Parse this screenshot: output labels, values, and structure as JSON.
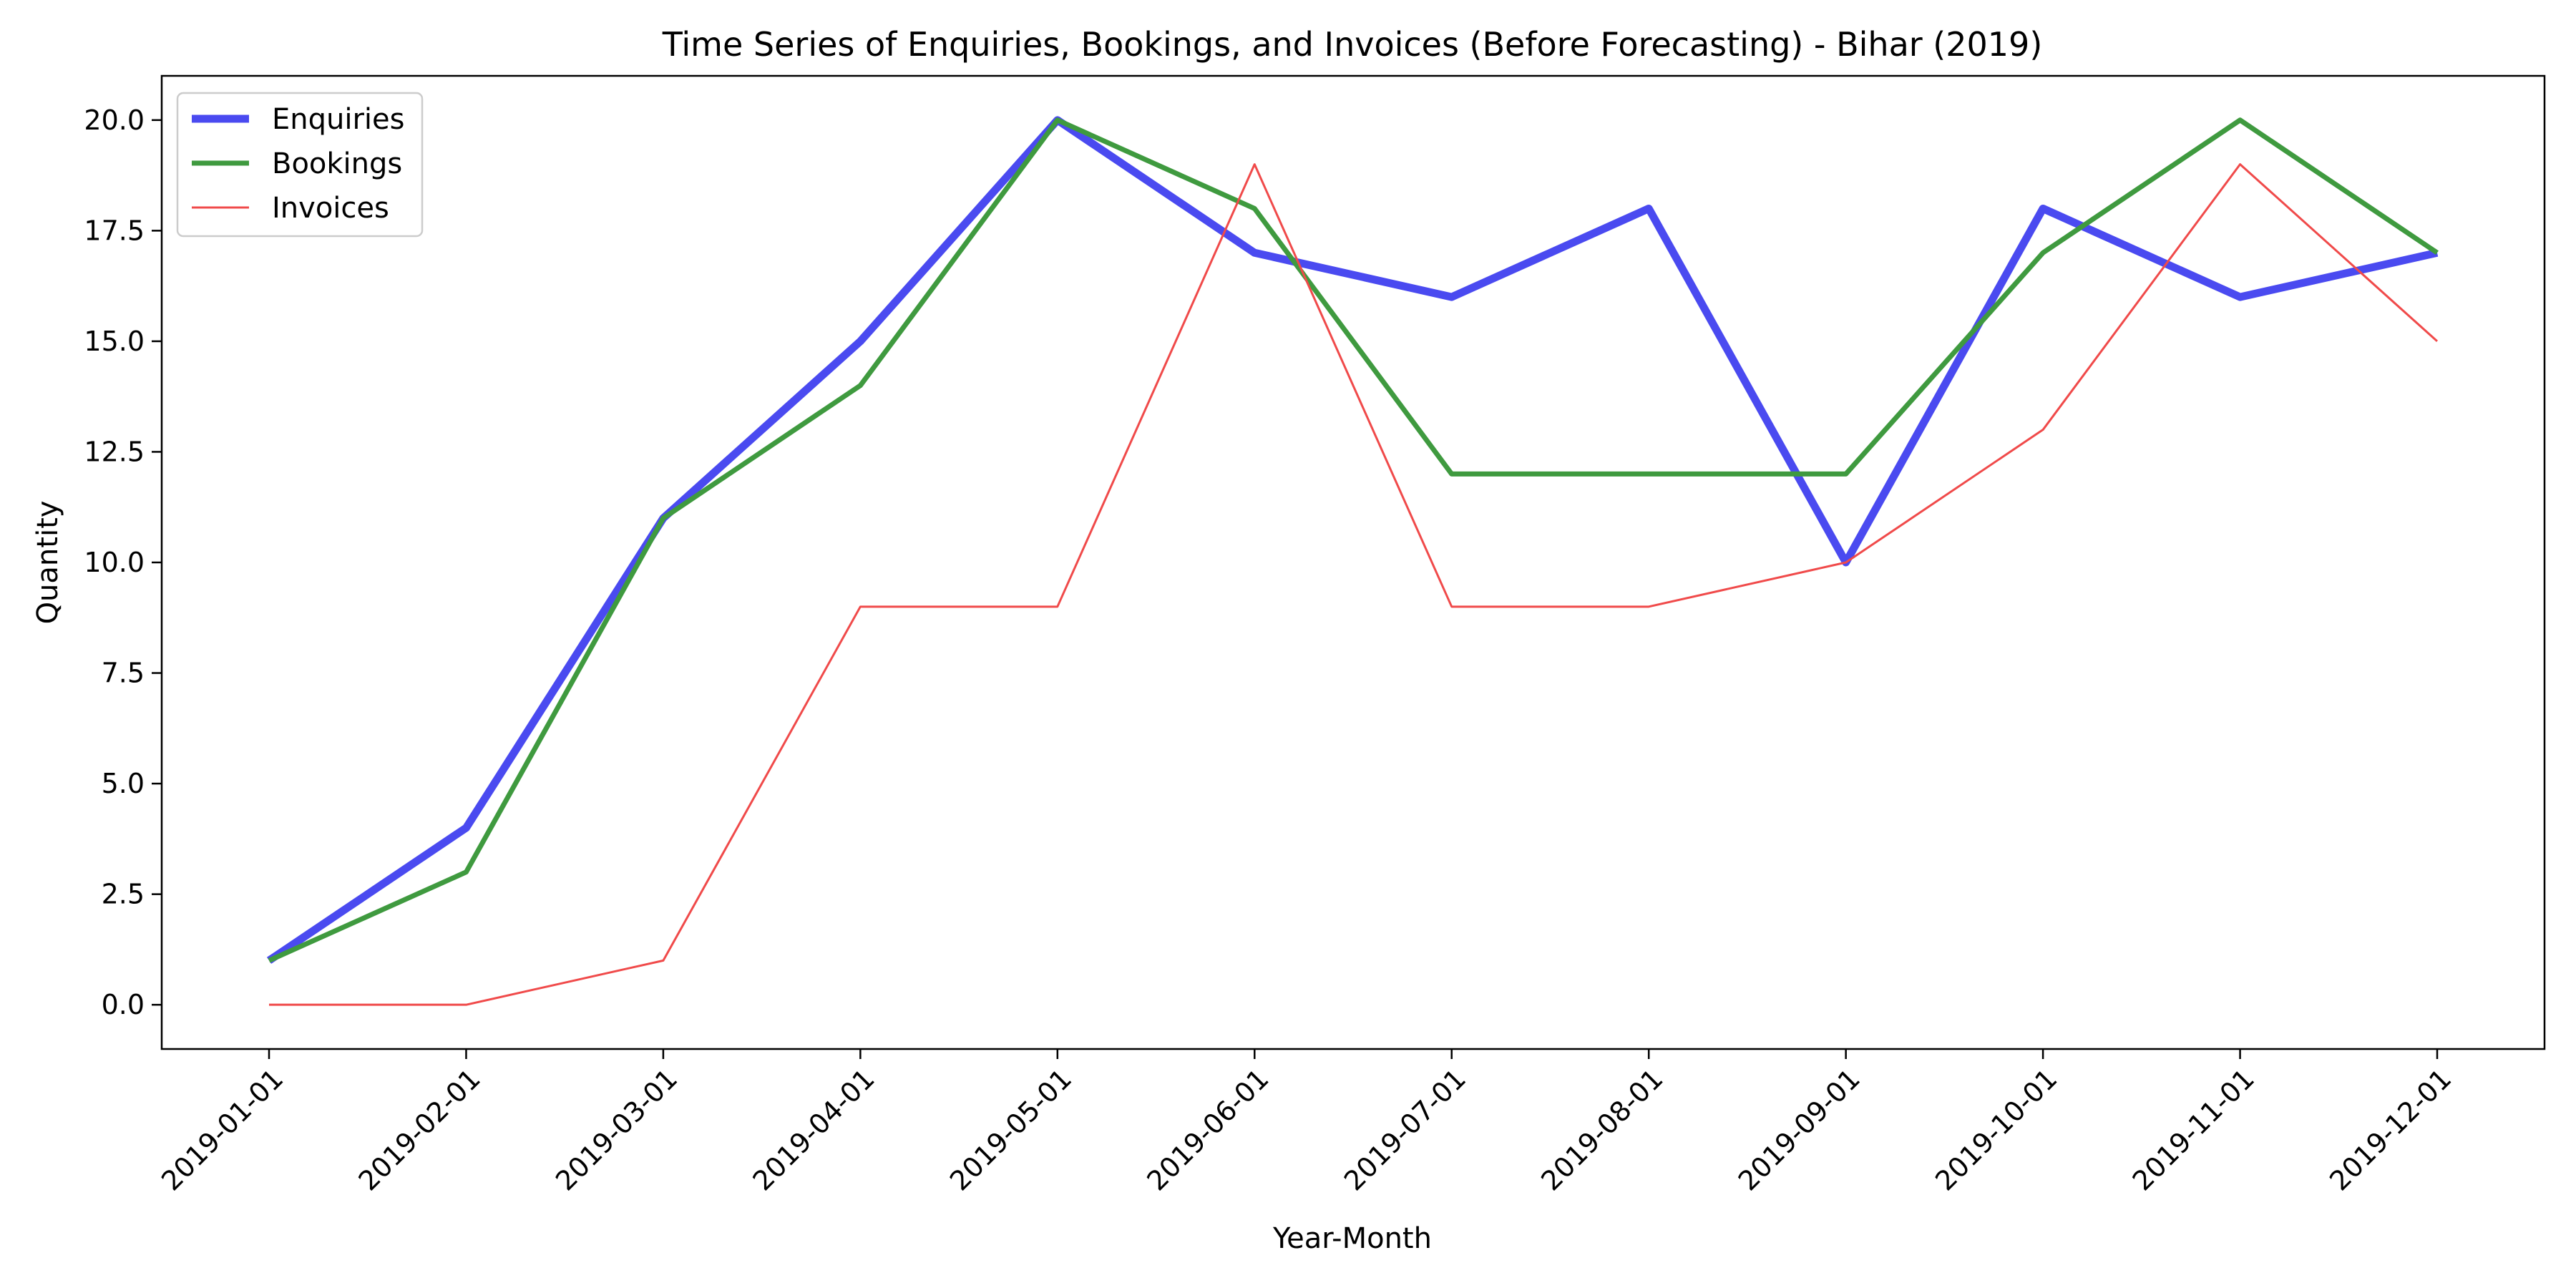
{
  "chart_data": {
    "type": "line",
    "title": "Time Series of Enquiries, Bookings, and Invoices (Before Forecasting) - Bihar (2019)",
    "xlabel": "Year-Month",
    "ylabel": "Quantity",
    "categories": [
      "2019-01-01",
      "2019-02-01",
      "2019-03-01",
      "2019-04-01",
      "2019-05-01",
      "2019-06-01",
      "2019-07-01",
      "2019-08-01",
      "2019-09-01",
      "2019-10-01",
      "2019-11-01",
      "2019-12-01"
    ],
    "ylim": [
      -1,
      21
    ],
    "yticks": [
      "0.0",
      "2.5",
      "5.0",
      "7.5",
      "10.0",
      "12.5",
      "15.0",
      "17.5",
      "20.0"
    ],
    "grid": false,
    "legend_position": "top-left",
    "series": [
      {
        "name": "Enquiries",
        "color": "#4a4af0",
        "values": [
          1,
          4,
          11,
          15,
          20,
          17,
          16,
          18,
          10,
          18,
          16,
          17
        ]
      },
      {
        "name": "Bookings",
        "color": "#3f9a3f",
        "values": [
          1,
          3,
          11,
          14,
          20,
          18,
          12,
          12,
          12,
          17,
          20,
          17
        ]
      },
      {
        "name": "Invoices",
        "color": "#f04a4a",
        "values": [
          0,
          0,
          1,
          9,
          9,
          19,
          9,
          9,
          10,
          13,
          19,
          15
        ]
      }
    ]
  }
}
